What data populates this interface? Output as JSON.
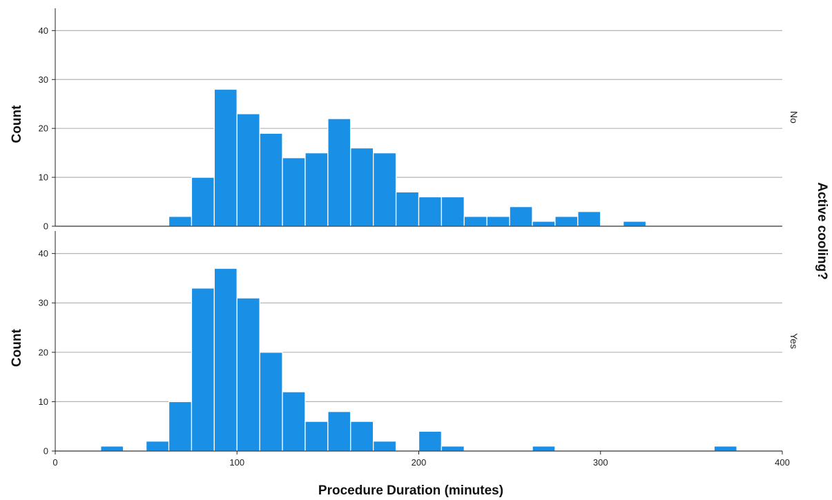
{
  "chart_data": {
    "type": "bar",
    "subtype": "histogram",
    "xlabel": "Procedure Duration (minutes)",
    "ylabel": "Count",
    "facet_title": "Active cooling?",
    "xlim": [
      0,
      400
    ],
    "ylim": [
      0,
      44
    ],
    "x_ticks": [
      "0",
      "100",
      "200",
      "300",
      "400"
    ],
    "y_ticks": [
      "0",
      "10",
      "20",
      "30",
      "40"
    ],
    "bin_width": 12.5,
    "grid": "horizontal",
    "bar_color": "#1a8fe6",
    "panels": [
      {
        "label": "No",
        "bins": [
          {
            "start": 62.5,
            "count": 2
          },
          {
            "start": 75,
            "count": 10
          },
          {
            "start": 87.5,
            "count": 28
          },
          {
            "start": 100,
            "count": 23
          },
          {
            "start": 112.5,
            "count": 19
          },
          {
            "start": 125,
            "count": 14
          },
          {
            "start": 137.5,
            "count": 15
          },
          {
            "start": 150,
            "count": 22
          },
          {
            "start": 162.5,
            "count": 16
          },
          {
            "start": 175,
            "count": 15
          },
          {
            "start": 187.5,
            "count": 7
          },
          {
            "start": 200,
            "count": 6
          },
          {
            "start": 212.5,
            "count": 6
          },
          {
            "start": 225,
            "count": 2
          },
          {
            "start": 237.5,
            "count": 2
          },
          {
            "start": 250,
            "count": 4
          },
          {
            "start": 262.5,
            "count": 1
          },
          {
            "start": 275,
            "count": 2
          },
          {
            "start": 287.5,
            "count": 3
          },
          {
            "start": 312.5,
            "count": 1
          }
        ]
      },
      {
        "label": "Yes",
        "bins": [
          {
            "start": 25,
            "count": 1
          },
          {
            "start": 50,
            "count": 2
          },
          {
            "start": 62.5,
            "count": 10
          },
          {
            "start": 75,
            "count": 33
          },
          {
            "start": 87.5,
            "count": 37
          },
          {
            "start": 100,
            "count": 31
          },
          {
            "start": 112.5,
            "count": 20
          },
          {
            "start": 125,
            "count": 12
          },
          {
            "start": 137.5,
            "count": 6
          },
          {
            "start": 150,
            "count": 8
          },
          {
            "start": 162.5,
            "count": 6
          },
          {
            "start": 175,
            "count": 2
          },
          {
            "start": 200,
            "count": 4
          },
          {
            "start": 212.5,
            "count": 1
          },
          {
            "start": 262.5,
            "count": 1
          },
          {
            "start": 362.5,
            "count": 1
          }
        ]
      }
    ]
  }
}
